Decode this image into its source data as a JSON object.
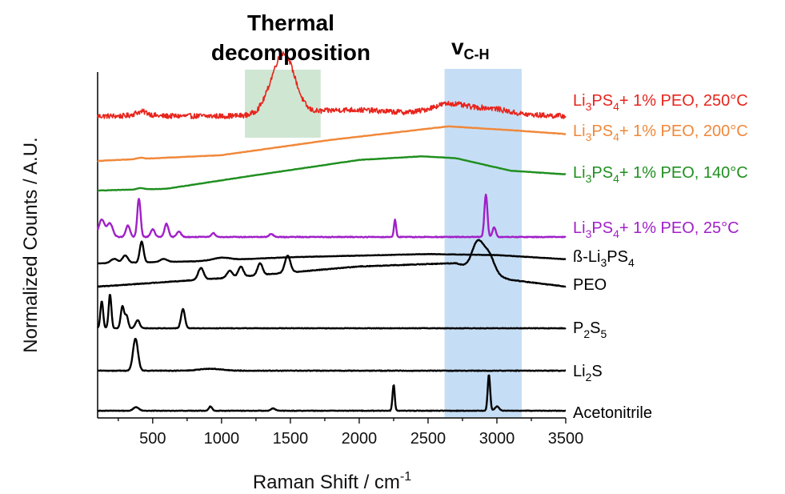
{
  "chart_data": {
    "type": "line",
    "xlabel": "Raman Shift / cm-1",
    "xlabel_main": "Raman Shift / cm",
    "xlabel_sup": "-1",
    "ylabel": "Normalized Counts / A.U.",
    "xlim": [
      100,
      3500
    ],
    "xticks": [
      500,
      1000,
      1500,
      2000,
      2500,
      3000,
      3500
    ],
    "grid": false,
    "legend": "labels at right end of each trace",
    "highlight_regions": [
      {
        "name": "thermal-decomposition",
        "x": [
          1170,
          1720
        ],
        "color": "#cfe6d3",
        "label_lines": [
          "Thermal",
          "decomposition"
        ]
      },
      {
        "name": "vch",
        "x": [
          2620,
          3180
        ],
        "color": "#c6def5",
        "label_main": "v",
        "label_sub": "C-H"
      }
    ],
    "series": [
      {
        "name": "Li3PS4+ 1% PEO, 250°C",
        "label_parts": [
          [
            "Li",
            ""
          ],
          [
            "3",
            "sub"
          ],
          [
            "PS",
            ""
          ],
          [
            "4",
            "sub"
          ],
          [
            "+ 1% PEO, 250°C",
            ""
          ]
        ],
        "color": "#e8241c",
        "peaks": [
          [
            420,
            0.1,
            50
          ],
          [
            1430,
            1.0,
            85
          ],
          [
            1480,
            0.45,
            70
          ],
          [
            1900,
            0.1,
            250
          ],
          [
            2650,
            0.2,
            120
          ],
          [
            2950,
            0.12,
            120
          ]
        ],
        "noise": 0.06,
        "baseline": [
          [
            100,
            0.0
          ],
          [
            1000,
            0.0
          ],
          [
            2700,
            0.08
          ],
          [
            3500,
            0.0
          ]
        ]
      },
      {
        "name": "Li3PS4+ 1% PEO, 200°C",
        "label_parts": [
          [
            "Li",
            ""
          ],
          [
            "3",
            "sub"
          ],
          [
            "PS",
            ""
          ],
          [
            "4",
            "sub"
          ],
          [
            "+ 1% PEO, 200°C",
            ""
          ]
        ],
        "color": "#f0883a",
        "peaks": [
          [
            410,
            0.03,
            25
          ]
        ],
        "noise": 0.005,
        "baseline": [
          [
            100,
            0.0
          ],
          [
            1000,
            0.15
          ],
          [
            1800,
            0.55
          ],
          [
            2650,
            0.9
          ],
          [
            3100,
            0.8
          ],
          [
            3500,
            0.7
          ]
        ]
      },
      {
        "name": "Li3PS4+ 1% PEO, 140°C",
        "label_parts": [
          [
            "Li",
            ""
          ],
          [
            "3",
            "sub"
          ],
          [
            "PS",
            ""
          ],
          [
            "4",
            "sub"
          ],
          [
            "+ 1% PEO, 140°C",
            ""
          ]
        ],
        "color": "#1f8f1f",
        "peaks": [
          [
            410,
            0.04,
            25
          ]
        ],
        "noise": 0.005,
        "baseline": [
          [
            100,
            0.0
          ],
          [
            600,
            0.05
          ],
          [
            1200,
            0.4
          ],
          [
            2000,
            0.85
          ],
          [
            2450,
            0.95
          ],
          [
            2700,
            0.9
          ],
          [
            3100,
            0.55
          ],
          [
            3500,
            0.45
          ]
        ]
      },
      {
        "name": "Li3PS4+ 1% PEO, 25°C",
        "label_parts": [
          [
            "Li",
            ""
          ],
          [
            "3",
            "sub"
          ],
          [
            "PS",
            ""
          ],
          [
            "4",
            "sub"
          ],
          [
            "+ 1% PEO, 25°C",
            ""
          ]
        ],
        "color": "#a020c8",
        "peaks": [
          [
            130,
            0.45,
            22
          ],
          [
            190,
            0.35,
            20
          ],
          [
            320,
            0.3,
            15
          ],
          [
            400,
            1.0,
            12
          ],
          [
            500,
            0.2,
            15
          ],
          [
            600,
            0.35,
            14
          ],
          [
            690,
            0.15,
            15
          ],
          [
            940,
            0.1,
            15
          ],
          [
            1360,
            0.08,
            15
          ],
          [
            2260,
            0.45,
            8
          ],
          [
            2920,
            1.1,
            11
          ],
          [
            2980,
            0.25,
            12
          ]
        ],
        "noise": 0.01,
        "baseline": [
          [
            100,
            0.0
          ],
          [
            3500,
            0.0
          ]
        ]
      },
      {
        "name": "ß-Li3PS4",
        "label_parts": [
          [
            "ß-Li",
            ""
          ],
          [
            "3",
            "sub"
          ],
          [
            "PS",
            ""
          ],
          [
            "4",
            "sub"
          ]
        ],
        "color": "#000000",
        "peaks": [
          [
            220,
            0.2,
            25
          ],
          [
            300,
            0.35,
            20
          ],
          [
            420,
            1.0,
            14
          ],
          [
            580,
            0.15,
            25
          ],
          [
            1000,
            0.12,
            60
          ]
        ],
        "noise": 0.01,
        "baseline": [
          [
            100,
            0.0
          ],
          [
            800,
            0.1
          ],
          [
            1500,
            0.3
          ],
          [
            2500,
            0.45
          ],
          [
            3000,
            0.4
          ],
          [
            3500,
            0.2
          ]
        ]
      },
      {
        "name": "PEO",
        "label_parts": [
          [
            "PEO",
            ""
          ]
        ],
        "color": "#000000",
        "peaks": [
          [
            850,
            0.35,
            20
          ],
          [
            1060,
            0.2,
            20
          ],
          [
            1140,
            0.3,
            18
          ],
          [
            1280,
            0.35,
            18
          ],
          [
            1480,
            0.5,
            20
          ],
          [
            2860,
            0.8,
            40
          ],
          [
            2940,
            0.55,
            40
          ]
        ],
        "noise": 0.01,
        "baseline": [
          [
            100,
            0.0
          ],
          [
            1000,
            0.25
          ],
          [
            2000,
            0.6
          ],
          [
            2700,
            0.7
          ],
          [
            3100,
            0.2
          ],
          [
            3500,
            0.0
          ]
        ]
      },
      {
        "name": "P2S5",
        "label_parts": [
          [
            "P",
            ""
          ],
          [
            "2",
            "sub"
          ],
          [
            "S",
            ""
          ],
          [
            "5",
            "sub"
          ]
        ],
        "color": "#000000",
        "peaks": [
          [
            130,
            1.0,
            10
          ],
          [
            190,
            1.25,
            10
          ],
          [
            280,
            0.8,
            12
          ],
          [
            310,
            0.45,
            12
          ],
          [
            390,
            0.3,
            15
          ],
          [
            720,
            0.7,
            14
          ]
        ],
        "noise": 0.01,
        "baseline": [
          [
            100,
            0.0
          ],
          [
            3500,
            0.0
          ]
        ]
      },
      {
        "name": "Li2S",
        "label_parts": [
          [
            "Li",
            ""
          ],
          [
            "2",
            "sub"
          ],
          [
            "S",
            ""
          ]
        ],
        "color": "#000000",
        "peaks": [
          [
            375,
            1.0,
            18
          ],
          [
            920,
            0.06,
            80
          ]
        ],
        "noise": 0.01,
        "baseline": [
          [
            100,
            0.0
          ],
          [
            3500,
            0.0
          ]
        ]
      },
      {
        "name": "Acetonitrile",
        "label_parts": [
          [
            "Acetonitrile",
            ""
          ]
        ],
        "color": "#000000",
        "peaks": [
          [
            380,
            0.12,
            20
          ],
          [
            920,
            0.15,
            12
          ],
          [
            1375,
            0.08,
            15
          ],
          [
            2250,
            0.9,
            8
          ],
          [
            2942,
            1.25,
            9
          ],
          [
            3000,
            0.15,
            15
          ]
        ],
        "noise": 0.01,
        "baseline": [
          [
            100,
            0.0
          ],
          [
            3500,
            0.0
          ]
        ]
      }
    ]
  }
}
